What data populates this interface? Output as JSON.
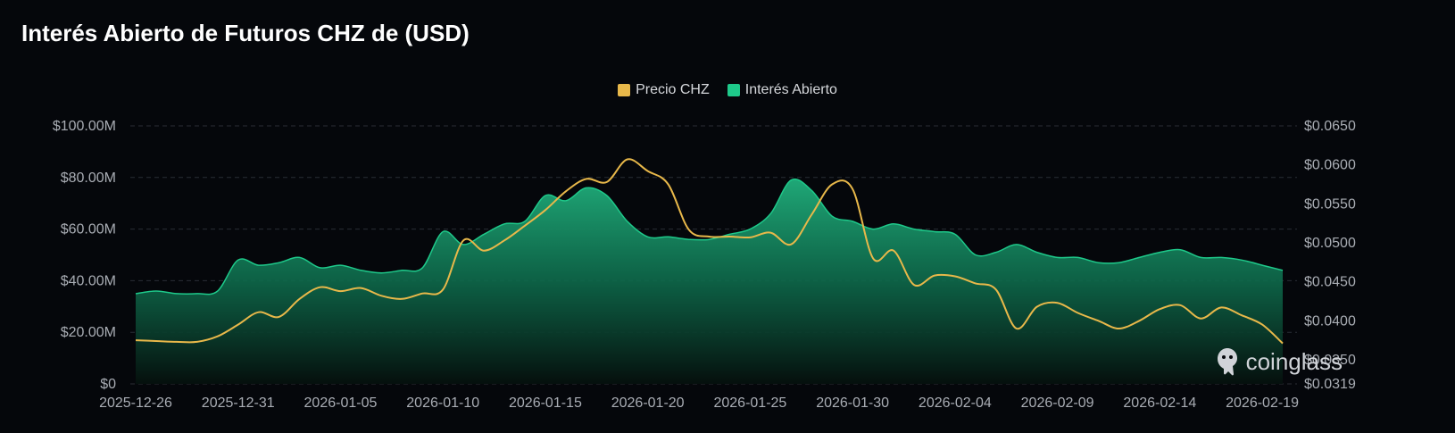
{
  "title": "Interés Abierto de Futuros CHZ de (USD)",
  "watermark": "coinglass",
  "colors": {
    "background": "#05070b",
    "price": "#e8b84a",
    "open_interest": "#1ec98a",
    "grid": "#2a2e36"
  },
  "chart_data": {
    "type": "area",
    "title": "Interés Abierto de Futuros CHZ de (USD)",
    "legend": [
      {
        "name": "Precio CHZ",
        "color": "#e8b84a"
      },
      {
        "name": "Interés Abierto",
        "color": "#1ec98a"
      }
    ],
    "legend_position": "top-center",
    "grid": true,
    "x_ticks": [
      "2025-12-26",
      "2025-12-31",
      "2026-01-05",
      "2026-01-10",
      "2026-01-15",
      "2026-01-20",
      "2026-01-25",
      "2026-01-30",
      "2026-02-04",
      "2026-02-09",
      "2026-02-14",
      "2026-02-19"
    ],
    "y_left_ticks": [
      "$0",
      "$20.00M",
      "$40.00M",
      "$60.00M",
      "$80.00M",
      "$100.00M"
    ],
    "y_left_range": [
      0,
      100
    ],
    "y_left_unit": "USD millions",
    "y_right_ticks": [
      "$0.0319",
      "$0.0350",
      "$0.0400",
      "$0.0450",
      "$0.0500",
      "$0.0550",
      "$0.0600",
      "$0.0650"
    ],
    "y_right_range": [
      0.0319,
      0.065
    ],
    "x": [
      "2025-12-26",
      "2025-12-27",
      "2025-12-28",
      "2025-12-29",
      "2025-12-30",
      "2025-12-31",
      "2026-01-01",
      "2026-01-02",
      "2026-01-03",
      "2026-01-04",
      "2026-01-05",
      "2026-01-06",
      "2026-01-07",
      "2026-01-08",
      "2026-01-09",
      "2026-01-10",
      "2026-01-11",
      "2026-01-12",
      "2026-01-13",
      "2026-01-14",
      "2026-01-15",
      "2026-01-16",
      "2026-01-17",
      "2026-01-18",
      "2026-01-19",
      "2026-01-20",
      "2026-01-21",
      "2026-01-22",
      "2026-01-23",
      "2026-01-24",
      "2026-01-25",
      "2026-01-26",
      "2026-01-27",
      "2026-01-28",
      "2026-01-29",
      "2026-01-30",
      "2026-01-31",
      "2026-02-01",
      "2026-02-02",
      "2026-02-03",
      "2026-02-04",
      "2026-02-05",
      "2026-02-06",
      "2026-02-07",
      "2026-02-08",
      "2026-02-09",
      "2026-02-10",
      "2026-02-11",
      "2026-02-12",
      "2026-02-13",
      "2026-02-14",
      "2026-02-15",
      "2026-02-16",
      "2026-02-17",
      "2026-02-18",
      "2026-02-19",
      "2026-02-20"
    ],
    "series": [
      {
        "name": "Interés Abierto",
        "axis": "left",
        "values": [
          35,
          36,
          35,
          35,
          36,
          48,
          46,
          47,
          49,
          45,
          46,
          44,
          43,
          44,
          45,
          59,
          54,
          58,
          62,
          63,
          73,
          71,
          76,
          73,
          63,
          57,
          57,
          56,
          56,
          58,
          60,
          66,
          79,
          75,
          65,
          63,
          60,
          62,
          60,
          59,
          58,
          50,
          51,
          54,
          51,
          49,
          49,
          47,
          47,
          49,
          51,
          52,
          49,
          49,
          48,
          46,
          44
        ]
      },
      {
        "name": "Precio CHZ",
        "axis": "right",
        "values": [
          0.0375,
          0.0374,
          0.0373,
          0.0373,
          0.038,
          0.0395,
          0.0411,
          0.0405,
          0.0428,
          0.0443,
          0.0438,
          0.0442,
          0.0432,
          0.0428,
          0.0435,
          0.044,
          0.0503,
          0.049,
          0.0503,
          0.0522,
          0.0542,
          0.0566,
          0.0582,
          0.0578,
          0.0607,
          0.0592,
          0.0575,
          0.0517,
          0.0508,
          0.0508,
          0.0507,
          0.0513,
          0.0498,
          0.0536,
          0.0575,
          0.0569,
          0.048,
          0.049,
          0.0446,
          0.0458,
          0.0457,
          0.0448,
          0.044,
          0.039,
          0.0418,
          0.0423,
          0.041,
          0.04,
          0.039,
          0.04,
          0.0415,
          0.042,
          0.0403,
          0.0417,
          0.0407,
          0.0395,
          0.0371
        ]
      }
    ]
  }
}
